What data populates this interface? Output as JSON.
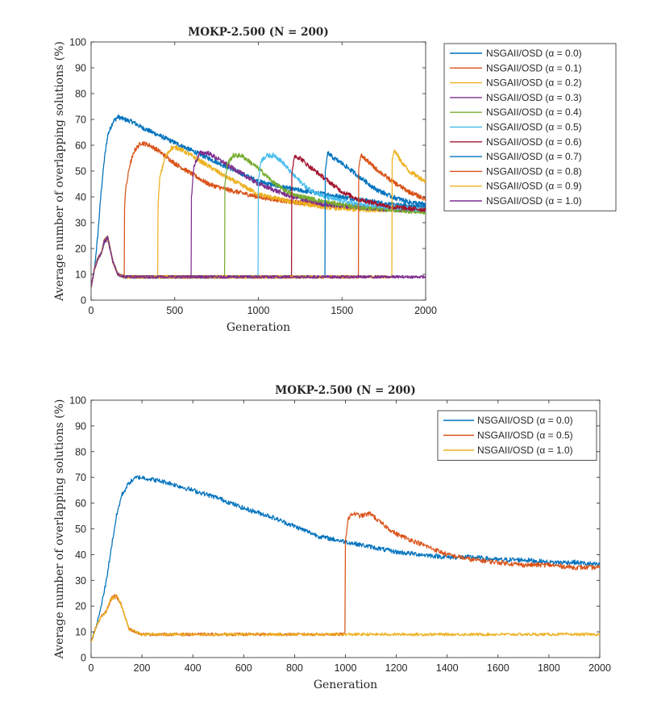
{
  "chart_data": [
    {
      "type": "line",
      "title": "MOKP-2.500 (N = 200)",
      "xlabel": "Generation",
      "ylabel": "Average number of overlapping solutions (%)",
      "xlim": [
        0,
        2000
      ],
      "ylim": [
        0,
        100
      ],
      "xticks": [
        0,
        500,
        1000,
        1500,
        2000
      ],
      "yticks": [
        0,
        10,
        20,
        30,
        40,
        50,
        60,
        70,
        80,
        90,
        100
      ],
      "legend_position": "outside-right",
      "series": [
        {
          "name": "NSGAII/OSD (α = 0.0)",
          "color": "#0072BD",
          "x": [
            0,
            20,
            40,
            60,
            80,
            100,
            130,
            160,
            200,
            250,
            300,
            400,
            500,
            600,
            700,
            800,
            900,
            1000,
            1200,
            1400,
            1600,
            1800,
            2000
          ],
          "y": [
            5,
            12,
            25,
            42,
            55,
            64,
            69,
            71,
            70,
            69,
            67,
            64,
            61,
            58,
            55,
            52,
            49,
            46,
            43,
            41,
            39,
            37,
            36
          ]
        },
        {
          "name": "NSGAII/OSD (α = 0.1)",
          "color": "#D95319",
          "x": [
            0,
            20,
            40,
            60,
            80,
            100,
            130,
            160,
            199,
            200,
            205,
            230,
            260,
            300,
            350,
            400,
            500,
            600,
            700,
            800,
            1000,
            1200,
            1400,
            1600,
            1800,
            2000
          ],
          "y": [
            5,
            12,
            16,
            18,
            23,
            24,
            15,
            10,
            9,
            36,
            42,
            52,
            58,
            61,
            60,
            58,
            53,
            49,
            45,
            43,
            40,
            38,
            37,
            36,
            36,
            35
          ]
        },
        {
          "name": "NSGAII/OSD (α = 0.2)",
          "color": "#EDB120",
          "x": [
            0,
            20,
            40,
            60,
            80,
            100,
            130,
            160,
            200,
            300,
            399,
            400,
            410,
            440,
            480,
            520,
            600,
            700,
            800,
            1000,
            1200,
            1400,
            1600,
            1800,
            2000
          ],
          "y": [
            5,
            12,
            16,
            18,
            23,
            24,
            15,
            10,
            9,
            9,
            9,
            36,
            47,
            55,
            59,
            59,
            56,
            52,
            48,
            41,
            38,
            36,
            35,
            35,
            35
          ]
        },
        {
          "name": "NSGAII/OSD (α = 0.3)",
          "color": "#7E2F8E",
          "x": [
            0,
            20,
            40,
            60,
            80,
            100,
            130,
            160,
            200,
            400,
            599,
            600,
            615,
            650,
            700,
            800,
            900,
            1000,
            1200,
            1400,
            1600,
            1800,
            2000
          ],
          "y": [
            5,
            12,
            16,
            18,
            23,
            24,
            15,
            10,
            9,
            9,
            9,
            40,
            52,
            57,
            57,
            53,
            49,
            45,
            40,
            37,
            36,
            35,
            35
          ]
        },
        {
          "name": "NSGAII/OSD (α = 0.4)",
          "color": "#77AC30",
          "x": [
            0,
            20,
            40,
            60,
            80,
            100,
            130,
            160,
            200,
            500,
            799,
            800,
            815,
            850,
            900,
            1000,
            1100,
            1200,
            1400,
            1600,
            1800,
            2000
          ],
          "y": [
            5,
            12,
            16,
            18,
            23,
            24,
            15,
            10,
            9,
            9,
            9,
            45,
            53,
            56,
            56,
            51,
            45,
            41,
            38,
            36,
            35,
            34
          ]
        },
        {
          "name": "NSGAII/OSD (α = 0.5)",
          "color": "#4DBEEE",
          "x": [
            0,
            20,
            40,
            60,
            80,
            100,
            130,
            160,
            200,
            600,
            999,
            1000,
            1015,
            1050,
            1100,
            1150,
            1200,
            1300,
            1400,
            1600,
            1800,
            2000
          ],
          "y": [
            5,
            12,
            16,
            18,
            23,
            24,
            15,
            10,
            9,
            9,
            9,
            46,
            54,
            56,
            56,
            53,
            49,
            43,
            40,
            37,
            36,
            35
          ]
        },
        {
          "name": "NSGAII/OSD (α = 0.6)",
          "color": "#A2142F",
          "x": [
            0,
            20,
            40,
            60,
            80,
            100,
            130,
            160,
            200,
            700,
            1199,
            1200,
            1215,
            1250,
            1300,
            1400,
            1500,
            1600,
            1800,
            2000
          ],
          "y": [
            5,
            12,
            16,
            18,
            23,
            24,
            15,
            10,
            9,
            9,
            9,
            48,
            56,
            55,
            52,
            47,
            42,
            39,
            36,
            35
          ]
        },
        {
          "name": "NSGAII/OSD (α = 0.7)",
          "color": "#0072BD",
          "x": [
            0,
            20,
            40,
            60,
            80,
            100,
            130,
            160,
            200,
            800,
            1399,
            1400,
            1415,
            1450,
            1500,
            1600,
            1700,
            1800,
            1900,
            2000
          ],
          "y": [
            5,
            12,
            16,
            18,
            23,
            24,
            15,
            10,
            9,
            9,
            9,
            50,
            57,
            55,
            53,
            48,
            43,
            40,
            38,
            37
          ]
        },
        {
          "name": "NSGAII/OSD (α = 0.8)",
          "color": "#D95319",
          "x": [
            0,
            20,
            40,
            60,
            80,
            100,
            130,
            160,
            200,
            900,
            1599,
            1600,
            1615,
            1650,
            1700,
            1800,
            1900,
            2000
          ],
          "y": [
            5,
            12,
            16,
            18,
            23,
            24,
            15,
            10,
            9,
            9,
            9,
            52,
            56,
            54,
            51,
            46,
            42,
            39
          ]
        },
        {
          "name": "NSGAII/OSD (α = 0.9)",
          "color": "#EDB120",
          "x": [
            0,
            20,
            40,
            60,
            80,
            100,
            130,
            160,
            200,
            1000,
            1799,
            1800,
            1815,
            1850,
            1900,
            2000
          ],
          "y": [
            5,
            12,
            16,
            18,
            23,
            24,
            15,
            10,
            9,
            9,
            9,
            55,
            58,
            54,
            50,
            46
          ]
        },
        {
          "name": "NSGAII/OSD (α = 1.0)",
          "color": "#7E2F8E",
          "x": [
            0,
            20,
            40,
            60,
            80,
            100,
            130,
            160,
            200,
            400,
            800,
            1200,
            1600,
            2000
          ],
          "y": [
            5,
            12,
            16,
            18,
            23,
            24,
            15,
            10,
            9,
            9,
            9,
            9,
            9,
            9
          ]
        }
      ]
    },
    {
      "type": "line",
      "title": "MOKP-2.500 (N = 200)",
      "xlabel": "Generation",
      "ylabel": "Average number of overlapping solutions (%)",
      "xlim": [
        0,
        2000
      ],
      "ylim": [
        0,
        100
      ],
      "xticks": [
        0,
        200,
        400,
        600,
        800,
        1000,
        1200,
        1400,
        1600,
        1800,
        2000
      ],
      "yticks": [
        0,
        10,
        20,
        30,
        40,
        50,
        60,
        70,
        80,
        90,
        100
      ],
      "legend_position": "top-right",
      "series": [
        {
          "name": "NSGAII/OSD (α = 0.0)",
          "color": "#0072BD",
          "x": [
            0,
            20,
            40,
            60,
            80,
            100,
            120,
            150,
            180,
            200,
            250,
            300,
            400,
            500,
            600,
            700,
            800,
            900,
            1000,
            1100,
            1200,
            1300,
            1400,
            1500,
            1600,
            1700,
            1800,
            1900,
            2000
          ],
          "y": [
            6,
            12,
            20,
            30,
            43,
            55,
            63,
            68,
            70,
            70,
            69,
            68,
            65,
            62,
            58,
            55,
            51,
            47,
            45,
            43,
            41,
            40,
            39,
            39,
            38,
            38,
            37,
            37,
            36
          ]
        },
        {
          "name": "NSGAII/OSD (α = 0.5)",
          "color": "#D95319",
          "x": [
            0,
            20,
            40,
            60,
            80,
            100,
            120,
            150,
            200,
            300,
            500,
            800,
            999,
            1000,
            1010,
            1030,
            1060,
            1100,
            1130,
            1200,
            1300,
            1400,
            1500,
            1600,
            1700,
            1800,
            1900,
            2000
          ],
          "y": [
            6,
            12,
            16,
            18,
            23,
            24,
            20,
            11,
            9,
            9,
            9,
            9,
            9,
            45,
            54,
            56,
            55,
            56,
            53,
            48,
            44,
            40,
            38,
            37,
            36,
            36,
            35,
            35
          ]
        },
        {
          "name": "NSGAII/OSD (α = 1.0)",
          "color": "#EDB120",
          "x": [
            0,
            20,
            40,
            60,
            80,
            100,
            120,
            150,
            200,
            300,
            500,
            800,
            1000,
            1200,
            1400,
            1600,
            1800,
            2000
          ],
          "y": [
            6,
            12,
            16,
            18,
            23,
            24,
            20,
            11,
            9,
            9,
            9,
            9,
            9,
            9,
            9,
            9,
            9,
            9
          ]
        }
      ]
    }
  ]
}
